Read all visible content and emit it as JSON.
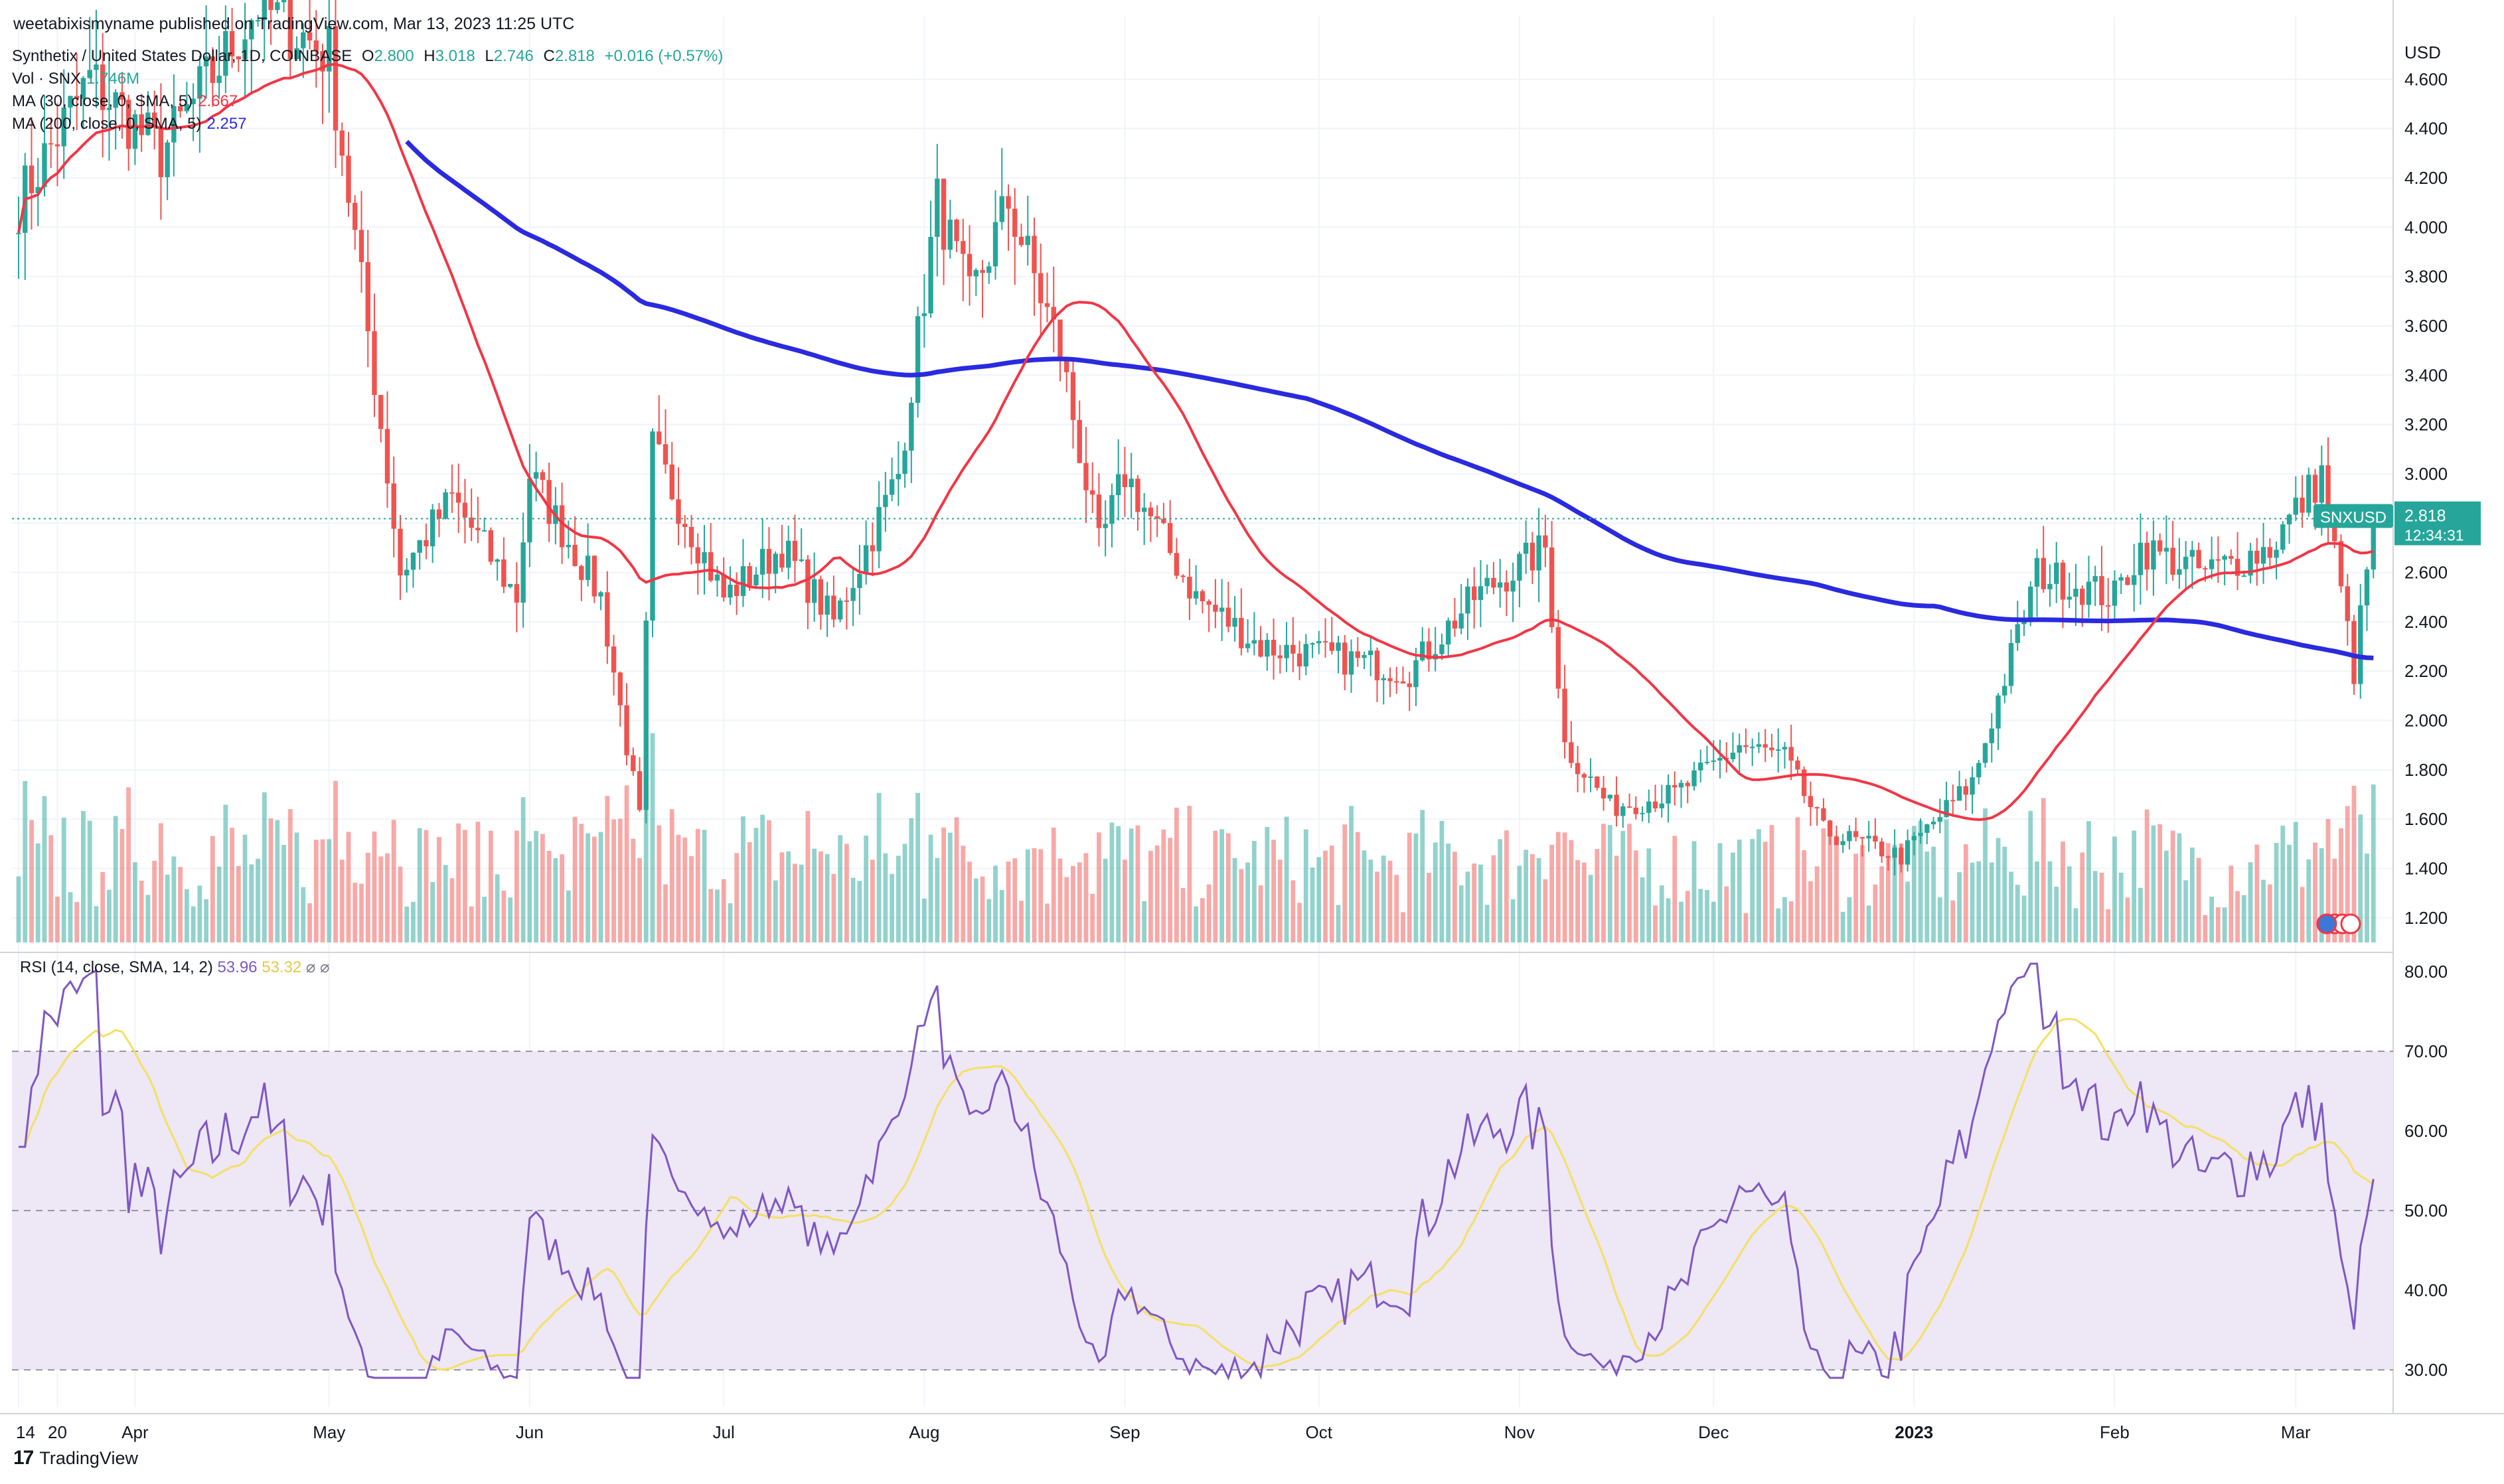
{
  "publisher_line": "weetabixismyname published on TradingView.com, Mar 13, 2023 11:25 UTC",
  "header": {
    "symbol": "Synthetix / United States Dollar, 1D, COINBASE",
    "o_label": "O",
    "o_value": "2.800",
    "h_label": "H",
    "h_value": "3.018",
    "l_label": "L",
    "l_value": "2.746",
    "c_label": "C",
    "c_value": "2.818",
    "change": "+0.016 (+0.57%)",
    "vol_label": "Vol · SNX",
    "vol_value": "1.746M",
    "ma30_label": "MA (30, close, 0, SMA, 5)",
    "ma30_value": "2.667",
    "ma200_label": "MA (200, close, 0, SMA, 5)",
    "ma200_value": "2.257"
  },
  "rsi_legend": {
    "label": "RSI (14, close, SMA, 14, 2)",
    "rsi_value": "53.96",
    "ma_value": "53.32",
    "icons": "⌀ ⌀"
  },
  "price_axis": {
    "currency": "USD",
    "ticks": [
      "4.600",
      "4.400",
      "4.200",
      "4.000",
      "3.800",
      "3.600",
      "3.400",
      "3.200",
      "3.000",
      "2.800",
      "2.600",
      "2.400",
      "2.200",
      "2.000",
      "1.800",
      "1.600",
      "1.400",
      "1.200"
    ]
  },
  "last_price": {
    "symbol": "SNXUSD",
    "price": "2.818",
    "countdown": "12:34:31"
  },
  "rsi_axis": {
    "ticks": [
      "80.00",
      "70.00",
      "60.00",
      "50.00",
      "40.00",
      "30.00"
    ]
  },
  "time_axis": {
    "labels": [
      "14",
      "Apr",
      "May",
      "Jun",
      "Jul",
      "Aug",
      "Sep",
      "Oct",
      "Nov",
      "Dec",
      "2023",
      "Feb",
      "Mar",
      "20"
    ]
  },
  "footer": {
    "brand": "TradingView",
    "logo_glyph": "17"
  },
  "colors": {
    "up": "#26a69a",
    "down": "#ef5350",
    "ma30": "#f23645",
    "ma200": "#2a2adf",
    "rsi": "#7e57c2",
    "rsi_ma": "#f5e063",
    "band": "#ede7f6"
  },
  "chart_data": {
    "type": "candlestick",
    "symbol": "SNXUSD",
    "ylim": [
      1.1,
      4.8
    ],
    "anchors": [
      {
        "date": "Mar 14",
        "price": 4.1
      },
      {
        "date": "Mar 25",
        "price": 4.6
      },
      {
        "date": "Apr 5",
        "price": 4.3
      },
      {
        "date": "Apr 20",
        "price": 4.9
      },
      {
        "date": "May 1",
        "price": 4.7
      },
      {
        "date": "May 9",
        "price": 3.2
      },
      {
        "date": "May 12",
        "price": 2.6
      },
      {
        "date": "May 20",
        "price": 2.9
      },
      {
        "date": "May 30",
        "price": 2.5
      },
      {
        "date": "Jun 1",
        "price": 3.0
      },
      {
        "date": "Jun 12",
        "price": 2.5
      },
      {
        "date": "Jun 18",
        "price": 1.6
      },
      {
        "date": "Jun 20",
        "price": 3.1
      },
      {
        "date": "Jul 1",
        "price": 2.5
      },
      {
        "date": "Jul 10",
        "price": 2.7
      },
      {
        "date": "Jul 18",
        "price": 2.4
      },
      {
        "date": "Jul 28",
        "price": 3.0
      },
      {
        "date": "Aug 3",
        "price": 4.1
      },
      {
        "date": "Aug 8",
        "price": 3.7
      },
      {
        "date": "Aug 14",
        "price": 4.1
      },
      {
        "date": "Aug 22",
        "price": 3.5
      },
      {
        "date": "Aug 28",
        "price": 2.7
      },
      {
        "date": "Sep 1",
        "price": 3.0
      },
      {
        "date": "Sep 12",
        "price": 2.5
      },
      {
        "date": "Sep 22",
        "price": 2.3
      },
      {
        "date": "Oct 5",
        "price": 2.25
      },
      {
        "date": "Oct 15",
        "price": 2.2
      },
      {
        "date": "Oct 25",
        "price": 2.5
      },
      {
        "date": "Nov 5",
        "price": 2.7
      },
      {
        "date": "Nov 8",
        "price": 1.9
      },
      {
        "date": "Nov 15",
        "price": 1.65
      },
      {
        "date": "Nov 25",
        "price": 1.7
      },
      {
        "date": "Dec 5",
        "price": 1.9
      },
      {
        "date": "Dec 12",
        "price": 1.85
      },
      {
        "date": "Dec 18",
        "price": 1.55
      },
      {
        "date": "Dec 30",
        "price": 1.45
      },
      {
        "date": "Jan 10",
        "price": 1.75
      },
      {
        "date": "Jan 20",
        "price": 2.6
      },
      {
        "date": "Feb 1",
        "price": 2.5
      },
      {
        "date": "Feb 5",
        "price": 2.7
      },
      {
        "date": "Feb 15",
        "price": 2.6
      },
      {
        "date": "Feb 25",
        "price": 2.7
      },
      {
        "date": "Mar 5",
        "price": 3.0
      },
      {
        "date": "Mar 10",
        "price": 2.2
      },
      {
        "date": "Mar 13",
        "price": 2.818
      }
    ],
    "ma30_value": 2.667,
    "ma200_value": 2.257,
    "rsi": {
      "ylim": [
        27,
        82
      ],
      "bands": [
        30,
        50,
        70
      ],
      "last": 53.96,
      "ma_last": 53.32
    }
  }
}
